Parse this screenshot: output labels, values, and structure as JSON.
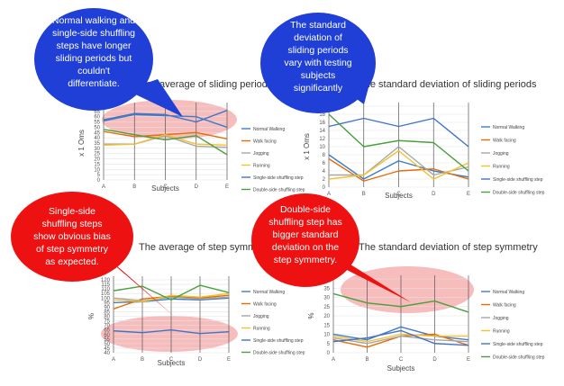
{
  "legend": [
    "Normal Walking",
    "Walk facing",
    "Jogging",
    "Running",
    "Single-side shuffling step",
    "Double-side shuffling step"
  ],
  "colors": [
    "#3d7cc9",
    "#e46c0a",
    "#a6a6a6",
    "#f2c12e",
    "#4472c4",
    "#4aa03f"
  ],
  "chart_data": [
    {
      "type": "line",
      "title": "The average of sliding periods",
      "xlabel": "Subjects",
      "ylabel": "x 1 Oms",
      "categories": [
        "A",
        "B",
        "C",
        "D",
        "E"
      ],
      "ylim": [
        0,
        70
      ],
      "yticks": [
        "0",
        "5",
        "10",
        "15",
        "20",
        "25",
        "30",
        "35",
        "40",
        "45",
        "50",
        "55",
        "60",
        "65",
        "70"
      ],
      "series": [
        {
          "name": "Normal Walking",
          "values": [
            56,
            62,
            61,
            60,
            50
          ]
        },
        {
          "name": "Walk facing",
          "values": [
            46,
            41,
            43,
            45,
            39
          ]
        },
        {
          "name": "Jogging",
          "values": [
            34,
            34,
            42,
            32,
            31
          ]
        },
        {
          "name": "Running",
          "values": [
            33,
            34,
            43,
            34,
            33
          ]
        },
        {
          "name": "Single-side shuffling step",
          "values": [
            57,
            63,
            62,
            55,
            66
          ]
        },
        {
          "name": "Double-side shuffling step",
          "values": [
            48,
            43,
            38,
            42,
            24
          ]
        }
      ]
    },
    {
      "type": "line",
      "title": "The standard deviation of sliding periods",
      "xlabel": "Subjects",
      "ylabel": "x 1 Oms",
      "categories": [
        "A",
        "B",
        "C",
        "D",
        "E"
      ],
      "ylim": [
        0,
        20
      ],
      "yticks": [
        "0",
        "2",
        "4",
        "6",
        "8",
        "10",
        "12",
        "14",
        "16",
        "18",
        "20"
      ],
      "series": [
        {
          "name": "Normal Walking",
          "values": [
            8,
            2,
            6.5,
            4,
            2.5
          ]
        },
        {
          "name": "Walk facing",
          "values": [
            7,
            1.5,
            4,
            4.5,
            2
          ]
        },
        {
          "name": "Jogging",
          "values": [
            3,
            3,
            10,
            3,
            5
          ]
        },
        {
          "name": "Running",
          "values": [
            2,
            3,
            9,
            2,
            6
          ]
        },
        {
          "name": "Single-side shuffling step",
          "values": [
            15,
            17,
            15,
            17,
            10
          ]
        },
        {
          "name": "Double-side shuffling step",
          "values": [
            18,
            10,
            11.5,
            11,
            4
          ]
        }
      ]
    },
    {
      "type": "line",
      "title": "The average of step symmetry",
      "xlabel": "Subjects",
      "ylabel": "%",
      "categories": [
        "A",
        "B",
        "C",
        "D",
        "E"
      ],
      "ylim": [
        40,
        120
      ],
      "yticks": [
        "40",
        "45",
        "50",
        "55",
        "60",
        "65",
        "70",
        "75",
        "80",
        "85",
        "90",
        "95",
        "100",
        "105",
        "110",
        "115",
        "120"
      ],
      "series": [
        {
          "name": "Normal Walking",
          "values": [
            95,
            96,
            99,
            98,
            100
          ]
        },
        {
          "name": "Walk facing",
          "values": [
            88,
            99,
            102,
            100,
            103
          ]
        },
        {
          "name": "Jogging",
          "values": [
            100,
            97,
            101,
            99,
            101
          ]
        },
        {
          "name": "Running",
          "values": [
            98,
            96,
            103,
            101,
            105
          ]
        },
        {
          "name": "Single-side shuffling step",
          "values": [
            64,
            62,
            65,
            61,
            63
          ]
        },
        {
          "name": "Double-side shuffling step",
          "values": [
            108,
            113,
            98,
            114,
            106
          ]
        }
      ]
    },
    {
      "type": "line",
      "title": "The standard deviation of step symmetry",
      "xlabel": "Subjects",
      "ylabel": "%",
      "categories": [
        "A",
        "B",
        "C",
        "D",
        "E"
      ],
      "ylim": [
        0,
        40
      ],
      "yticks": [
        "0",
        "5",
        "10",
        "15",
        "20",
        "25",
        "30",
        "35",
        "40"
      ],
      "series": [
        {
          "name": "Normal Walking",
          "values": [
            10,
            7,
            14,
            9,
            7
          ]
        },
        {
          "name": "Walk facing",
          "values": [
            7,
            3,
            9,
            10,
            4
          ]
        },
        {
          "name": "Jogging",
          "values": [
            8,
            5,
            9,
            7,
            6
          ]
        },
        {
          "name": "Running",
          "values": [
            9,
            6,
            10,
            9,
            9
          ]
        },
        {
          "name": "Single-side shuffling step",
          "values": [
            6,
            8,
            12,
            5,
            4
          ]
        },
        {
          "name": "Double-side shuffling step",
          "values": [
            32,
            27,
            25,
            28,
            22
          ]
        }
      ]
    }
  ],
  "callouts": [
    {
      "color": "#1f3fd6",
      "lines": [
        "Normal walking and",
        "single-side shuffling",
        "steps have longer",
        "sliding periods but",
        "couldn't",
        "differentiate."
      ]
    },
    {
      "color": "#1f3fd6",
      "lines": [
        "The standard",
        "deviation of",
        "sliding periods",
        "vary with testing",
        "subjects",
        "significantly"
      ]
    },
    {
      "color": "#ee1111",
      "lines": [
        "Single-side",
        "shuffling steps",
        "show obvious bias",
        "of step symmetry",
        "as expected."
      ]
    },
    {
      "color": "#ee1111",
      "lines": [
        "Double-side",
        "shuffling step has",
        "bigger standard",
        "deviation on the",
        "step symmetry."
      ]
    }
  ]
}
